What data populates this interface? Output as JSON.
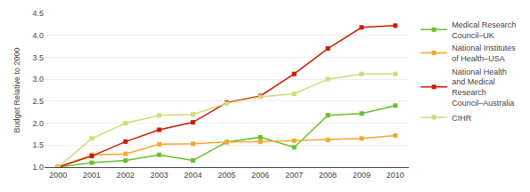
{
  "chart_data": {
    "type": "line",
    "x": [
      2000,
      2001,
      2002,
      2003,
      2004,
      2005,
      2006,
      2007,
      2008,
      2009,
      2010
    ],
    "ylabel": "Budget Relative to 2000",
    "series": [
      {
        "name": "Medical Research\nCouncil–UK",
        "color": "#6abf2e",
        "marker": "square",
        "values": [
          1.0,
          1.1,
          1.15,
          1.28,
          1.15,
          1.57,
          1.68,
          1.45,
          2.18,
          2.22,
          2.4
        ]
      },
      {
        "name": "National Institutes\nof Health–USA",
        "color": "#f0a830",
        "marker": "square",
        "values": [
          1.0,
          1.28,
          1.3,
          1.52,
          1.53,
          1.57,
          1.58,
          1.6,
          1.62,
          1.65,
          1.72
        ]
      },
      {
        "name": "National Health\nand Medical\nResearch\nCouncil–Australia",
        "color": "#cc1a00",
        "marker": "square",
        "values": [
          1.0,
          1.25,
          1.58,
          1.85,
          2.02,
          2.47,
          2.62,
          3.12,
          3.7,
          4.18,
          4.22
        ]
      },
      {
        "name": "CIHR",
        "color": "#d4d878",
        "marker": "square",
        "values": [
          1.0,
          1.65,
          2.0,
          2.18,
          2.2,
          2.45,
          2.6,
          2.67,
          3.0,
          3.12,
          3.12
        ]
      }
    ],
    "xlim": [
      1999.6,
      2010.4
    ],
    "xticks": [
      2000,
      2001,
      2002,
      2003,
      2004,
      2005,
      2006,
      2007,
      2008,
      2009,
      2010
    ],
    "ylim": [
      1.0,
      4.5
    ],
    "yticks": [
      {
        "value": 1.0,
        "label": "1.0"
      },
      {
        "value": 1.5,
        "label": "1.5"
      },
      {
        "value": 2.0,
        "label": "2.0"
      },
      {
        "value": 2.5,
        "label": "2.5"
      },
      {
        "value": 3.0,
        "label": "3.0"
      },
      {
        "value": 3.5,
        "label": "3.5"
      },
      {
        "value": 4.0,
        "label": "4.0"
      },
      {
        "value": 4.5,
        "label": "4.5"
      }
    ],
    "grid": "y",
    "legend": "right"
  }
}
